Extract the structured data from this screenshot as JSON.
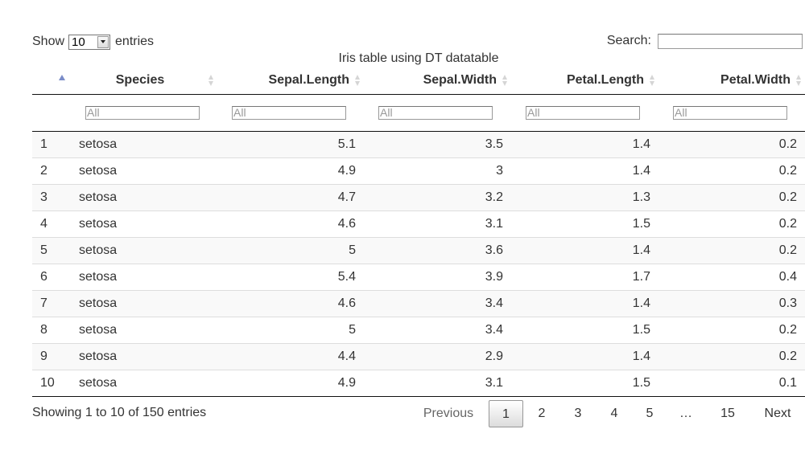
{
  "length": {
    "show_label": "Show",
    "entries_label": "entries",
    "selected": "10"
  },
  "search": {
    "label": "Search:",
    "value": ""
  },
  "caption": "Iris table using DT datatable",
  "columns": {
    "rownum": "",
    "species": "Species",
    "sepal_length": "Sepal.Length",
    "sepal_width": "Sepal.Width",
    "petal_length": "Petal.Length",
    "petal_width": "Petal.Width"
  },
  "filters": {
    "placeholder": "All"
  },
  "rows": [
    {
      "id": "1",
      "species": "setosa",
      "sl": "5.1",
      "sw": "3.5",
      "pl": "1.4",
      "pw": "0.2"
    },
    {
      "id": "2",
      "species": "setosa",
      "sl": "4.9",
      "sw": "3",
      "pl": "1.4",
      "pw": "0.2"
    },
    {
      "id": "3",
      "species": "setosa",
      "sl": "4.7",
      "sw": "3.2",
      "pl": "1.3",
      "pw": "0.2"
    },
    {
      "id": "4",
      "species": "setosa",
      "sl": "4.6",
      "sw": "3.1",
      "pl": "1.5",
      "pw": "0.2"
    },
    {
      "id": "5",
      "species": "setosa",
      "sl": "5",
      "sw": "3.6",
      "pl": "1.4",
      "pw": "0.2"
    },
    {
      "id": "6",
      "species": "setosa",
      "sl": "5.4",
      "sw": "3.9",
      "pl": "1.7",
      "pw": "0.4"
    },
    {
      "id": "7",
      "species": "setosa",
      "sl": "4.6",
      "sw": "3.4",
      "pl": "1.4",
      "pw": "0.3"
    },
    {
      "id": "8",
      "species": "setosa",
      "sl": "5",
      "sw": "3.4",
      "pl": "1.5",
      "pw": "0.2"
    },
    {
      "id": "9",
      "species": "setosa",
      "sl": "4.4",
      "sw": "2.9",
      "pl": "1.4",
      "pw": "0.2"
    },
    {
      "id": "10",
      "species": "setosa",
      "sl": "4.9",
      "sw": "3.1",
      "pl": "1.5",
      "pw": "0.1"
    }
  ],
  "info": "Showing 1 to 10 of 150 entries",
  "pagination": {
    "previous": "Previous",
    "pages": [
      "1",
      "2",
      "3",
      "4",
      "5",
      "…",
      "15"
    ],
    "current": "1",
    "next": "Next"
  },
  "colors": {
    "sort_active": "#7a8cc8",
    "row_stripe": "#f9f9f9",
    "border": "#111111"
  }
}
